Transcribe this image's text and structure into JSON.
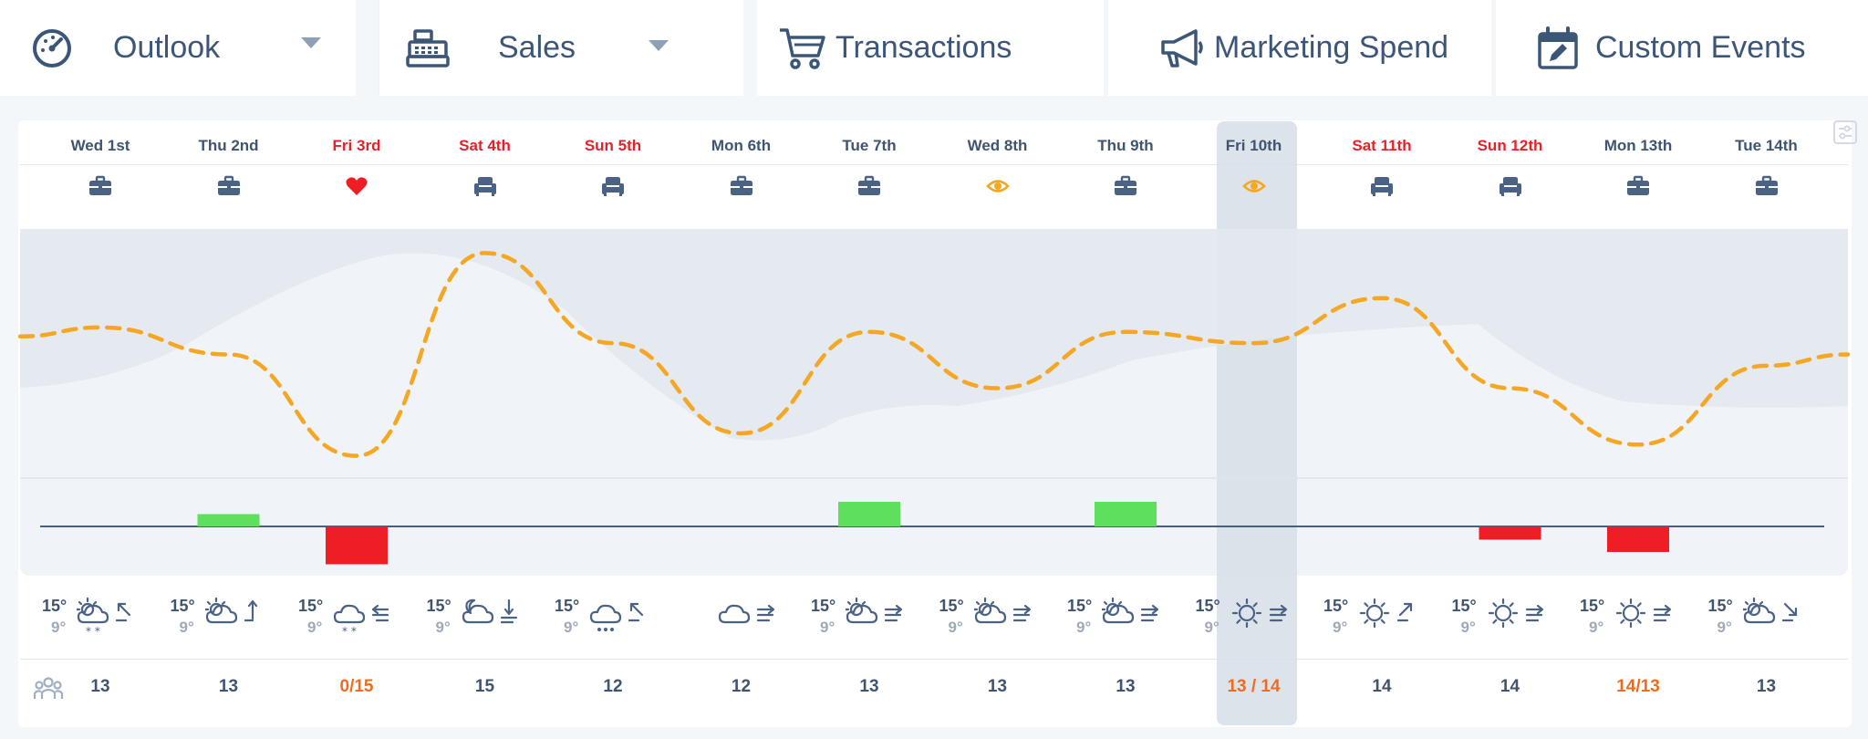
{
  "tabs": [
    {
      "label": "Outlook",
      "icon": "speedometer-icon",
      "dropdown": true
    },
    {
      "label": "Sales",
      "icon": "cash-register-icon",
      "dropdown": true
    },
    {
      "label": "Transactions",
      "icon": "shopping-cart-icon",
      "dropdown": false
    },
    {
      "label": "Marketing Spend",
      "icon": "megaphone-icon",
      "dropdown": false
    },
    {
      "label": "Custom Events",
      "icon": "calendar-edit-icon",
      "dropdown": false
    }
  ],
  "days": [
    {
      "label": "Wed 1st",
      "weekend": false,
      "icon": "briefcase-icon"
    },
    {
      "label": "Thu 2nd",
      "weekend": false,
      "icon": "briefcase-icon"
    },
    {
      "label": "Fri 3rd",
      "weekend": true,
      "icon": "heart-icon"
    },
    {
      "label": "Sat 4th",
      "weekend": true,
      "icon": "armchair-icon"
    },
    {
      "label": "Sun 5th",
      "weekend": true,
      "icon": "armchair-icon"
    },
    {
      "label": "Mon 6th",
      "weekend": false,
      "icon": "briefcase-icon"
    },
    {
      "label": "Tue 7th",
      "weekend": false,
      "icon": "briefcase-icon"
    },
    {
      "label": "Wed 8th",
      "weekend": false,
      "icon": "eye-icon"
    },
    {
      "label": "Thu 9th",
      "weekend": false,
      "icon": "briefcase-icon"
    },
    {
      "label": "Fri 10th",
      "weekend": false,
      "icon": "eye-icon",
      "selected": true
    },
    {
      "label": "Sat 11th",
      "weekend": true,
      "icon": "armchair-icon"
    },
    {
      "label": "Sun 12th",
      "weekend": true,
      "icon": "armchair-icon"
    },
    {
      "label": "Mon 13th",
      "weekend": false,
      "icon": "briefcase-icon"
    },
    {
      "label": "Tue 14th",
      "weekend": false,
      "icon": "briefcase-icon"
    }
  ],
  "weather": [
    {
      "hi": "15°",
      "lo": "9°",
      "icon": "cloud-sun-snow-icon",
      "wind": "wind-up-left-icon"
    },
    {
      "hi": "15°",
      "lo": "9°",
      "icon": "cloud-sun-icon",
      "wind": "wind-up-icon"
    },
    {
      "hi": "15°",
      "lo": "9°",
      "icon": "cloud-snow-icon",
      "wind": "wind-left-icon"
    },
    {
      "hi": "15°",
      "lo": "9°",
      "icon": "cloud-moon-icon",
      "wind": "wind-down-icon"
    },
    {
      "hi": "15°",
      "lo": "9°",
      "icon": "cloud-rain-icon",
      "wind": "wind-up-left-icon"
    },
    {
      "hi": "",
      "lo": "",
      "icon": "cloud-icon",
      "wind": "wind-right-icon"
    },
    {
      "hi": "15°",
      "lo": "9°",
      "icon": "cloud-sun-icon",
      "wind": "wind-right-icon"
    },
    {
      "hi": "15°",
      "lo": "9°",
      "icon": "cloud-sun-icon",
      "wind": "wind-right-icon"
    },
    {
      "hi": "15°",
      "lo": "9°",
      "icon": "cloud-sun-icon",
      "wind": "wind-right-icon"
    },
    {
      "hi": "15°",
      "lo": "9°",
      "icon": "sun-icon",
      "wind": "wind-right-icon"
    },
    {
      "hi": "15°",
      "lo": "9°",
      "icon": "sun-icon",
      "wind": "wind-up-right-icon"
    },
    {
      "hi": "15°",
      "lo": "9°",
      "icon": "sun-icon",
      "wind": "wind-right-icon"
    },
    {
      "hi": "15°",
      "lo": "9°",
      "icon": "sun-icon",
      "wind": "wind-right-icon"
    },
    {
      "hi": "15°",
      "lo": "9°",
      "icon": "cloud-sun-icon",
      "wind": "wind-down-right-icon"
    }
  ],
  "counts": [
    {
      "value": "13",
      "highlight": false
    },
    {
      "value": "13",
      "highlight": false
    },
    {
      "value": "0/15",
      "highlight": true
    },
    {
      "value": "15",
      "highlight": false
    },
    {
      "value": "12",
      "highlight": false
    },
    {
      "value": "12",
      "highlight": false
    },
    {
      "value": "13",
      "highlight": false
    },
    {
      "value": "13",
      "highlight": false
    },
    {
      "value": "13",
      "highlight": false
    },
    {
      "value": "13 / 14",
      "highlight": true
    },
    {
      "value": "14",
      "highlight": false
    },
    {
      "value": "14",
      "highlight": false
    },
    {
      "value": "14/13",
      "highlight": true
    },
    {
      "value": "13",
      "highlight": false
    }
  ],
  "chart_data": {
    "type": "line",
    "x": [
      "Wed 1st",
      "Thu 2nd",
      "Fri 3rd",
      "Sat 4th",
      "Sun 5th",
      "Mon 6th",
      "Tue 7th",
      "Wed 8th",
      "Thu 9th",
      "Fri 10th",
      "Sat 11th",
      "Sun 12th",
      "Mon 13th",
      "Tue 14th"
    ],
    "series": [
      {
        "values": [
          0.62,
          0.5,
          0.05,
          0.95,
          0.55,
          0.15,
          0.6,
          0.35,
          0.6,
          0.55,
          0.75,
          0.35,
          0.1,
          0.45
        ]
      }
    ],
    "bars": [
      0,
      0.3,
      -0.9,
      0,
      0,
      0,
      0.6,
      0,
      0.6,
      0,
      0,
      -0.3,
      -0.6,
      0
    ],
    "colors": {
      "line": "#f5a623",
      "bar_positive": "#5ee05e",
      "bar_negative": "#ef1e25",
      "baseline": "#4a6079",
      "weekend_text": "#e8202a",
      "weekday_text": "#3f5470",
      "highlight_text": "#f26b1d"
    }
  }
}
